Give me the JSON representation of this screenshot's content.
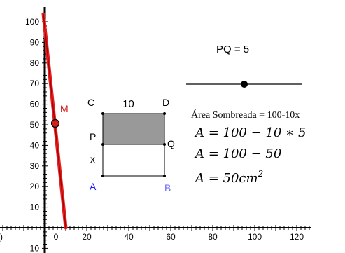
{
  "axes": {
    "y_ticks": [
      "100",
      "90",
      "80",
      "70",
      "60",
      "50",
      "40",
      "30",
      "20",
      "10",
      "-10"
    ],
    "x_ticks": [
      "0",
      "20",
      "40",
      "60",
      "80",
      "100",
      "120"
    ],
    "x_edge_label": ")",
    "y_range": [
      -10,
      100
    ],
    "x_range": [
      0,
      120
    ]
  },
  "graph": {
    "line_color": "#e02020",
    "point_label": "M",
    "point_label_color": "#d01010"
  },
  "slider": {
    "label": "PQ = 5",
    "value": 5,
    "min": 0,
    "max": 10
  },
  "rectangle": {
    "width_label": "10",
    "side_label": "x",
    "corners": {
      "C": "C",
      "D": "D",
      "P": "P",
      "Q": "Q",
      "A": "A",
      "B": "B"
    },
    "shaded_color": "#999999",
    "label_color_A": "#1a1aff",
    "label_color_B": "#6a6aff"
  },
  "formulas": {
    "title": "Área Sombreada = 100-10x",
    "line1": "A = 100 − 10 ∗ 5",
    "line2": "A = 100 − 50",
    "line3_main": "A = 50cm",
    "line3_sup": "2"
  }
}
